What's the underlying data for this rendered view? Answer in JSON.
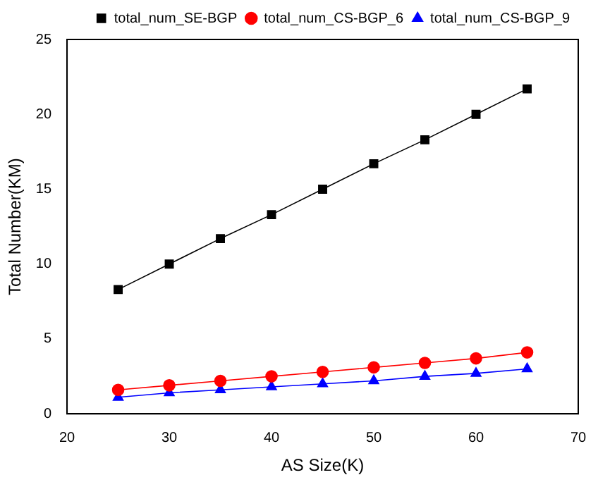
{
  "chart_data": {
    "type": "line",
    "xlabel": "AS Size(K)",
    "ylabel": "Total Number(KM)",
    "x": [
      25,
      30,
      35,
      40,
      45,
      50,
      55,
      60,
      65
    ],
    "series": [
      {
        "name": "total_num_SE-BGP",
        "color": "#000000",
        "marker": "square",
        "values": [
          8.3,
          10,
          11.7,
          13.3,
          15,
          16.7,
          18.3,
          20,
          21.7
        ]
      },
      {
        "name": "total_num_CS-BGP_6",
        "color": "#ff0000",
        "marker": "circle",
        "values": [
          1.6,
          1.9,
          2.2,
          2.5,
          2.8,
          3.1,
          3.4,
          3.7,
          4.1
        ]
      },
      {
        "name": "total_num_CS-BGP_9",
        "color": "#0000ff",
        "marker": "triangle",
        "values": [
          1.1,
          1.4,
          1.6,
          1.8,
          2.0,
          2.2,
          2.5,
          2.7,
          3.0
        ]
      }
    ],
    "xlim": [
      20,
      70
    ],
    "xticks": [
      20,
      30,
      40,
      50,
      60,
      70
    ],
    "ylim": [
      0,
      25
    ],
    "yticks": [
      0,
      5,
      10,
      15,
      20,
      25
    ],
    "grid": false,
    "legend": "top right"
  }
}
